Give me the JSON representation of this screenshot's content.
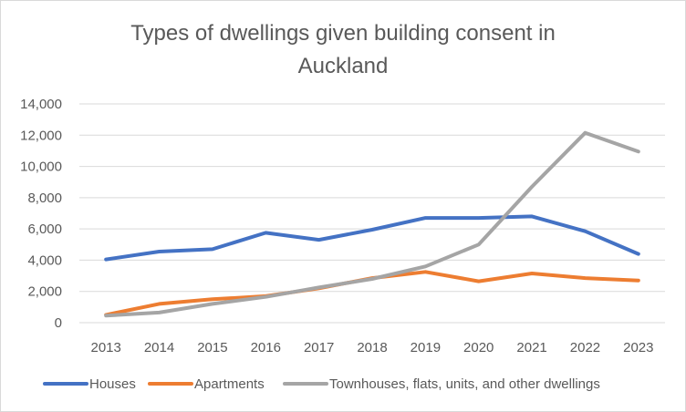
{
  "chart_data": {
    "type": "line",
    "title_line1": "Types of dwellings given building consent in",
    "title_line2": "Auckland",
    "categories": [
      "2013",
      "2014",
      "2015",
      "2016",
      "2017",
      "2018",
      "2019",
      "2020",
      "2021",
      "2022",
      "2023"
    ],
    "series": [
      {
        "name": "Houses",
        "color": "#4472C4",
        "values": [
          4050,
          4550,
          4700,
          5750,
          5300,
          5950,
          6700,
          6700,
          6800,
          5850,
          4400
        ]
      },
      {
        "name": "Apartments",
        "color": "#ED7D31",
        "values": [
          500,
          1200,
          1500,
          1700,
          2200,
          2850,
          3250,
          2650,
          3150,
          2850,
          2700
        ]
      },
      {
        "name": "Townhouses, flats, units, and other dwellings",
        "color": "#A5A5A5",
        "values": [
          450,
          650,
          1200,
          1650,
          2250,
          2800,
          3600,
          5000,
          8700,
          12150,
          10950
        ]
      }
    ],
    "yticks": [
      "0",
      "2,000",
      "4,000",
      "6,000",
      "8,000",
      "10,000",
      "12,000",
      "14,000"
    ],
    "ylim": [
      0,
      14000
    ],
    "xlabel": "",
    "ylabel": "",
    "grid": true,
    "legend_position": "bottom"
  }
}
